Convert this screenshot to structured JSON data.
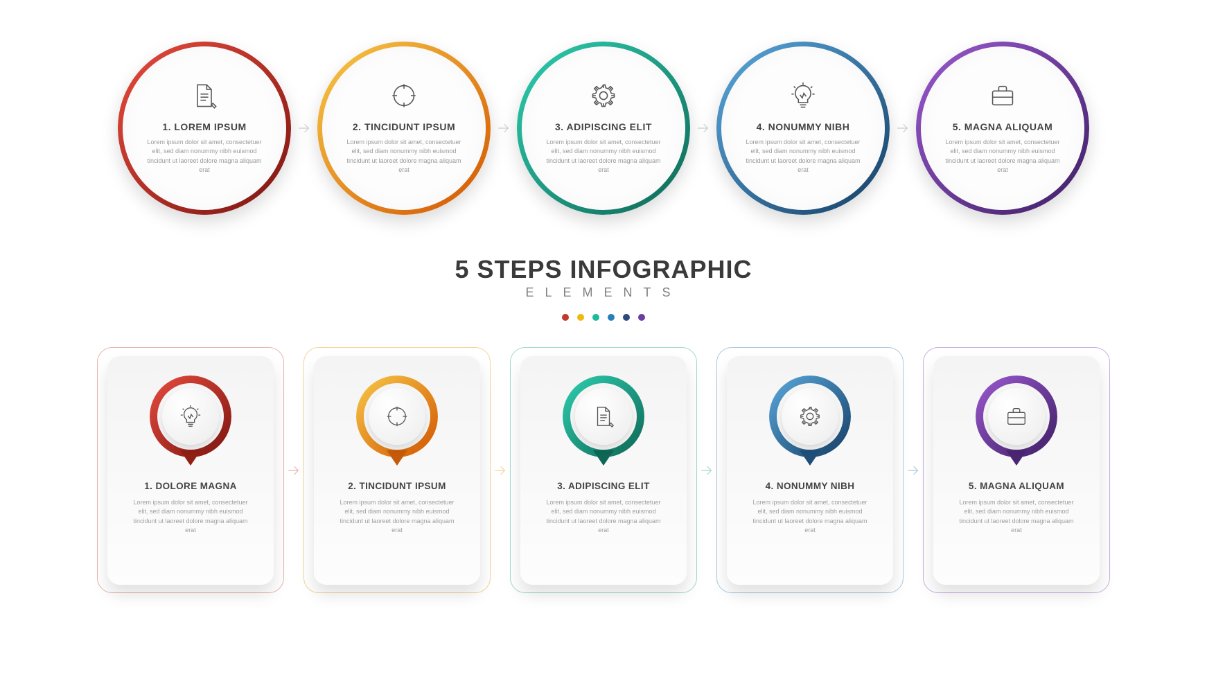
{
  "title": "5 STEPS INFOGRAPHIC",
  "subtitle": "ELEMENTS",
  "body_text": "Lorem ipsum dolor sit amet, consectetuer elit, sed diam nonummy nibh euismod tincidunt ut laoreet dolore magna aliquam erat",
  "dot_colors": [
    "#c0392b",
    "#f1b90c",
    "#1abc9c",
    "#2b7fb8",
    "#2f4b7c",
    "#6b3fa0"
  ],
  "circles": [
    {
      "num": "1.",
      "label": "LOREM IPSUM",
      "icon": "document-icon",
      "ring_from": "#e84c3d",
      "ring_to": "#7a1410"
    },
    {
      "num": "2.",
      "label": "TINCIDUNT IPSUM",
      "icon": "target-icon",
      "ring_from": "#f7c948",
      "ring_to": "#d35400"
    },
    {
      "num": "3.",
      "label": "ADIPISCING ELIT",
      "icon": "gear-icon",
      "ring_from": "#2ecfb0",
      "ring_to": "#0e6655"
    },
    {
      "num": "4.",
      "label": "NONUMMY NIBH",
      "icon": "idea-icon",
      "ring_from": "#5aa9dd",
      "ring_to": "#153d63"
    },
    {
      "num": "5.",
      "label": "MAGNA ALIQUAM",
      "icon": "briefcase-icon",
      "ring_from": "#9b59d0",
      "ring_to": "#3d1e63"
    }
  ],
  "cards": [
    {
      "num": "1.",
      "label": "DOLORE MAGNA",
      "icon": "idea-icon",
      "ring_from": "#e84c3d",
      "ring_to": "#7a1410",
      "border": "#e8b3ad",
      "tail": "#8f2013"
    },
    {
      "num": "2.",
      "label": "TINCIDUNT IPSUM",
      "icon": "target-icon",
      "ring_from": "#f7c948",
      "ring_to": "#d35400",
      "border": "#f2d49a",
      "tail": "#c65a0b"
    },
    {
      "num": "3.",
      "label": "ADIPISCING ELIT",
      "icon": "document-icon",
      "ring_from": "#2ecfb0",
      "ring_to": "#0e6655",
      "border": "#9fd9cf",
      "tail": "#0e6655"
    },
    {
      "num": "4.",
      "label": "NONUMMY NIBH",
      "icon": "gear-icon",
      "ring_from": "#5aa9dd",
      "ring_to": "#153d63",
      "border": "#a9c9dd",
      "tail": "#1f4e79"
    },
    {
      "num": "5.",
      "label": "MAGNA ALIQUAM",
      "icon": "briefcase-icon",
      "ring_from": "#9b59d0",
      "ring_to": "#3d1e63",
      "border": "#c9aee0",
      "tail": "#4a2672"
    }
  ]
}
